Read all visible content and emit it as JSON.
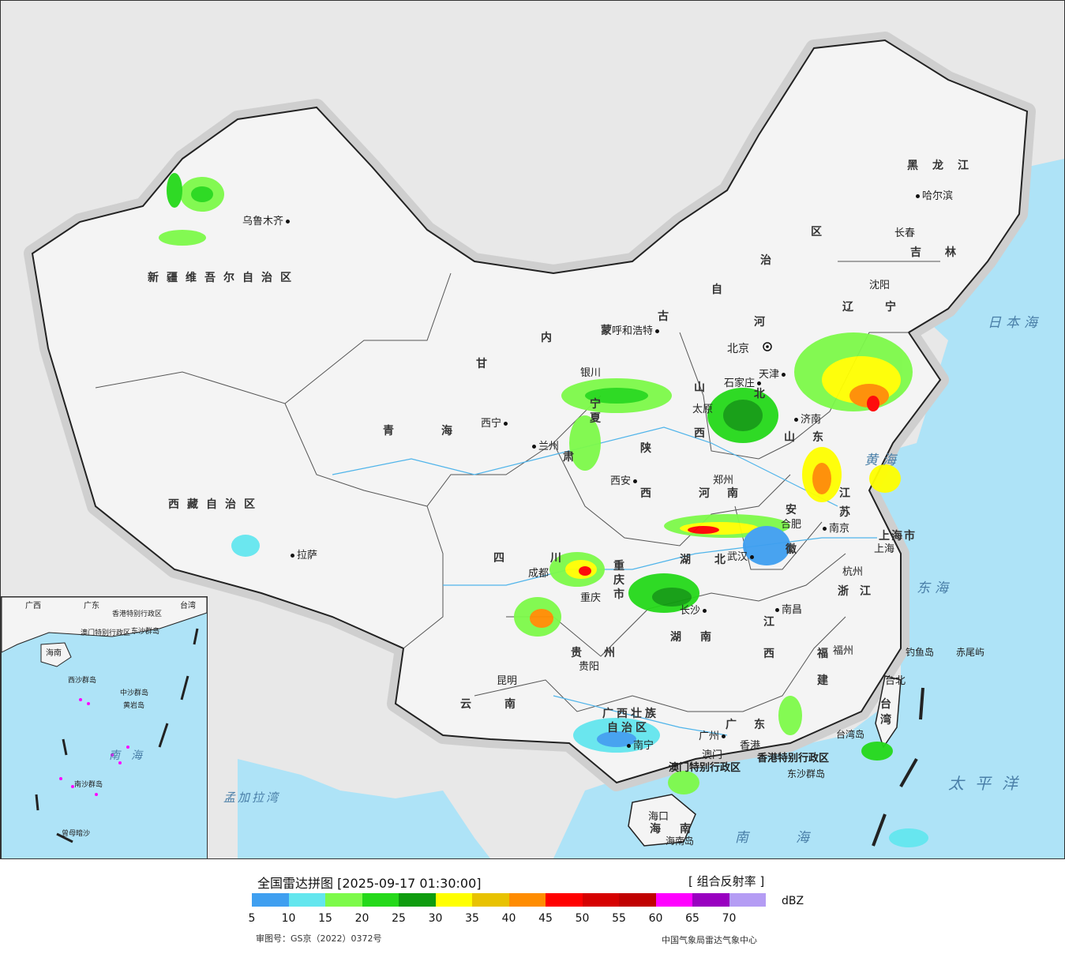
{
  "title": "全国雷达拼图 [2025-09-17 01:30:00]",
  "product": "[ 组合反射率 ]",
  "unit": "dBZ",
  "legend": {
    "colors": [
      "#3f9ff0",
      "#63e6ee",
      "#7dfa4a",
      "#25d91a",
      "#0f9c0f",
      "#ffff00",
      "#e8c200",
      "#ff8c00",
      "#ff0000",
      "#d60000",
      "#c00000",
      "#ff00ff",
      "#9900c0",
      "#b49cf4"
    ],
    "ticks": [
      "5",
      "10",
      "15",
      "20",
      "25",
      "30",
      "35",
      "40",
      "45",
      "50",
      "55",
      "60",
      "65",
      "70"
    ]
  },
  "approval_number": "审图号：GS京（2022）0372号",
  "producer": "中国气象局雷达气象中心",
  "colors": {
    "sea": "#aee3f7",
    "land": "#f4f4f4",
    "foreign": "#e8e8e8",
    "border": "#222222"
  },
  "provinces": [
    "新疆维吾尔自治区",
    "西藏自治区",
    "青海",
    "甘",
    "肃",
    "内",
    "蒙",
    "古",
    "自",
    "治",
    "区",
    "黑龙江",
    "吉林",
    "辽宁",
    "河",
    "北",
    "山",
    "西",
    "陕",
    "西",
    "宁",
    "夏",
    "河南",
    "山",
    "东",
    "江",
    "苏",
    "安",
    "徽",
    "湖",
    "北",
    "四",
    "川",
    "重",
    "庆",
    "市",
    "湖",
    "南",
    "江",
    "西",
    "浙",
    "江",
    "福",
    "建",
    "贵",
    "州",
    "云",
    "南",
    "广西壮族",
    "自治区",
    "广",
    "东",
    "海",
    "南",
    "台",
    "湾",
    "上海市"
  ],
  "cities": [
    "乌鲁木齐",
    "拉萨",
    "西宁",
    "兰州",
    "银川",
    "呼和浩特",
    "北京",
    "天津",
    "石家庄",
    "太原",
    "西安",
    "郑州",
    "济南",
    "沈阳",
    "长春",
    "哈尔滨",
    "合肥",
    "南京",
    "上海",
    "杭州",
    "武汉",
    "成都",
    "重庆",
    "长沙",
    "南昌",
    "福州",
    "台北",
    "贵阳",
    "昆明",
    "南宁",
    "广州",
    "香港",
    "澳门",
    "海口"
  ],
  "special_regions": [
    "香港特别行政区",
    "澳门特别行政区"
  ],
  "islands": [
    "钓鱼岛",
    "赤尾屿",
    "台湾岛",
    "东沙群岛",
    "海南岛"
  ],
  "seas": [
    "日本海",
    "黄海",
    "东海",
    "太平洋",
    "南海",
    "孟加拉湾"
  ],
  "inset_labels": [
    "南海",
    "广东",
    "广西",
    "海南",
    "台湾",
    "香港特别行政区",
    "澳门特别行政区",
    "东沙群岛",
    "西沙群岛",
    "中沙群岛",
    "南沙群岛",
    "黄岩岛",
    "曾母暗沙"
  ]
}
